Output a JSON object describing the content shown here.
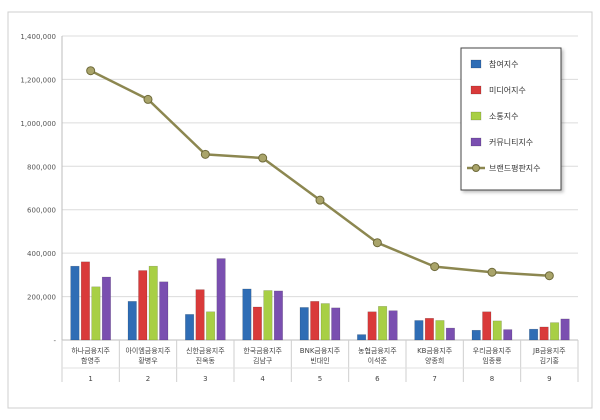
{
  "chart_data": {
    "type": "bar",
    "title": "",
    "xlabel": "",
    "ylabel": "",
    "ylim": [
      0,
      1400000
    ],
    "yticks": [
      0,
      200000,
      400000,
      600000,
      800000,
      1000000,
      1200000,
      1400000
    ],
    "ytick_labels": [
      "-",
      "200,000",
      "400,000",
      "600,000",
      "800,000",
      "1,000,000",
      "1,200,000",
      "1,400,000"
    ],
    "grid": true,
    "legend_position": "top-right",
    "categories": [
      {
        "name": "하나금융지주",
        "person": "함영주",
        "rank": "1"
      },
      {
        "name": "아이엠금융지주",
        "person": "황병우",
        "rank": "2"
      },
      {
        "name": "신한금융지주",
        "person": "진옥동",
        "rank": "3"
      },
      {
        "name": "한국금융지주",
        "person": "김남구",
        "rank": "4"
      },
      {
        "name": "BNK금융지주",
        "person": "빈대인",
        "rank": "5"
      },
      {
        "name": "농협금융지주",
        "person": "이석준",
        "rank": "6"
      },
      {
        "name": "KB금융지주",
        "person": "양종희",
        "rank": "7"
      },
      {
        "name": "우리금융지주",
        "person": "임종룡",
        "rank": "8"
      },
      {
        "name": "JB금융지주",
        "person": "김기홍",
        "rank": "9"
      }
    ],
    "series": [
      {
        "name": "참여지수",
        "type": "bar",
        "color": "#2f6db5",
        "values": [
          340000,
          178000,
          118000,
          235000,
          150000,
          25000,
          90000,
          45000,
          50000
        ]
      },
      {
        "name": "미디어지수",
        "type": "bar",
        "color": "#d93a3a",
        "values": [
          360000,
          320000,
          232000,
          152000,
          178000,
          130000,
          100000,
          130000,
          60000
        ]
      },
      {
        "name": "소통지수",
        "type": "bar",
        "color": "#a8cf45",
        "values": [
          245000,
          340000,
          130000,
          228000,
          168000,
          155000,
          90000,
          88000,
          80000
        ]
      },
      {
        "name": "커뮤니티지수",
        "type": "bar",
        "color": "#7a4fb0",
        "values": [
          290000,
          268000,
          375000,
          226000,
          148000,
          135000,
          55000,
          48000,
          97000
        ]
      },
      {
        "name": "브랜드평판지수",
        "type": "line",
        "color": "#8c8750",
        "values": [
          1240000,
          1108000,
          855000,
          838000,
          644000,
          448000,
          338000,
          312000,
          296000
        ]
      }
    ]
  }
}
